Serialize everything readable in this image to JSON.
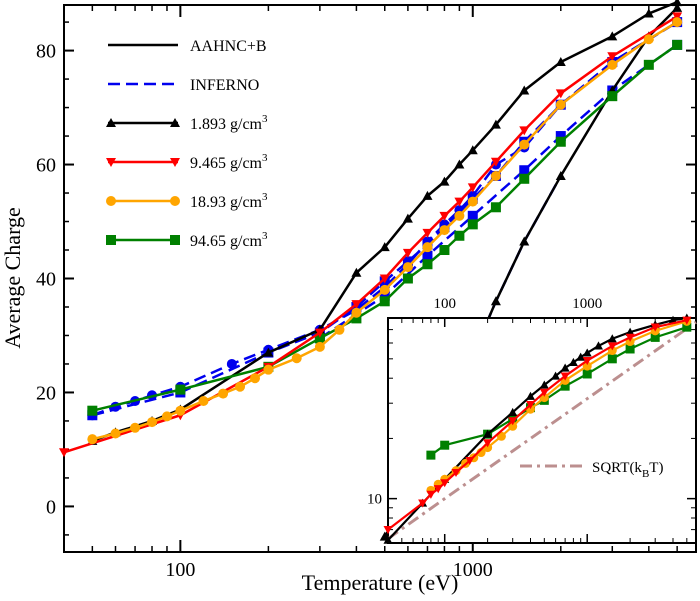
{
  "chart_data": [
    {
      "type": "line",
      "xlabel": "Temperature (eV)",
      "ylabel": "Average Charge",
      "xscale": "log",
      "yscale": "linear",
      "xlim": [
        40,
        5800
      ],
      "ylim": [
        -8,
        88
      ],
      "x_ticks": [
        100,
        1000
      ],
      "x_tick_labels": [
        "100",
        "1000"
      ],
      "y_ticks": [
        0,
        20,
        40,
        60,
        80
      ],
      "y_tick_labels": [
        "0",
        "20",
        "40",
        "60",
        "80"
      ],
      "grid": false,
      "legend": {
        "placement": "top-left",
        "entries": [
          {
            "label": "AAHNC+B",
            "color": "#000000",
            "style": "solid",
            "marker": "none"
          },
          {
            "label": "INFERNO",
            "color": "#0000ee",
            "style": "dashed",
            "marker": "none"
          },
          {
            "label_main": "1.893 g/cm",
            "label_sup": "3",
            "color": "#000000",
            "style": "solid",
            "marker": "triangle-up"
          },
          {
            "label_main": "9.465 g/cm",
            "label_sup": "3",
            "color": "#ff0000",
            "style": "solid",
            "marker": "triangle-down"
          },
          {
            "label_main": "18.93 g/cm",
            "label_sup": "3",
            "color": "#ffa500",
            "style": "solid",
            "marker": "circle"
          },
          {
            "label_main": "94.65 g/cm",
            "label_sup": "3",
            "color": "#008000",
            "style": "solid",
            "marker": "square"
          }
        ]
      },
      "series": [
        {
          "name": "AAHNC+B",
          "density": "1.893",
          "model": "AAHNC+B",
          "color": "#000000",
          "marker": "triangle-up",
          "x": [
            500,
            600,
            700,
            800,
            900,
            1000,
            1200,
            1500,
            2000,
            3000,
            4000,
            5000
          ],
          "y": [
            -5.3,
            1.5,
            9.5,
            14.5,
            20.5,
            26.5,
            36.0,
            46.5,
            58.0,
            73.0,
            82.5,
            87.5
          ]
        },
        {
          "name": "INFERNO",
          "density": "1.893",
          "model": "INFERNO",
          "color": "#0000ee",
          "style": "dashed",
          "x": [
            800,
            900,
            1000,
            1200,
            1500,
            2000
          ],
          "y": [
            14.5,
            20.5,
            26.5,
            36.0,
            46.5,
            58.0
          ]
        },
        {
          "name": "9.465 g/cm3",
          "density": "9.465",
          "model": "AAHNC+B",
          "color": "#ff0000",
          "marker": "triangle-down",
          "x": [
            40,
            100,
            200,
            300,
            400,
            500,
            600,
            700,
            800,
            900,
            1000,
            1200,
            1500,
            2000,
            3000,
            5000
          ],
          "y": [
            9.5,
            16.0,
            24.5,
            30.5,
            35.5,
            40.0,
            44.5,
            48.0,
            51.0,
            53.5,
            56.0,
            60.5,
            66.0,
            72.5,
            79.0,
            86.0
          ]
        },
        {
          "name": "18.93 g/cm3",
          "density": "18.93",
          "model": "AAHNC+B",
          "color": "#ffa500",
          "marker": "circle",
          "x": [
            50,
            60,
            70,
            80,
            90,
            100,
            120,
            140,
            160,
            180,
            200,
            250,
            300,
            350,
            400,
            500,
            600,
            700,
            800,
            900,
            1000,
            1200,
            1500,
            2000,
            3000,
            4000,
            5000
          ],
          "y": [
            11.8,
            12.8,
            13.8,
            14.8,
            15.8,
            16.8,
            18.5,
            19.8,
            21.0,
            22.5,
            24.0,
            26.0,
            28.0,
            31.0,
            34.0,
            38.0,
            42.0,
            45.5,
            48.5,
            51.0,
            53.5,
            58.0,
            63.5,
            70.5,
            77.5,
            82.0,
            85.0
          ]
        },
        {
          "name": "94.65 g/cm3",
          "density": "94.65",
          "model": "AAHNC+B",
          "color": "#008000",
          "marker": "square",
          "x": [
            50,
            100,
            200,
            300,
            400,
            500,
            600,
            700,
            800,
            900,
            1000,
            1200,
            1500,
            2000,
            3000,
            4000,
            5000
          ],
          "y": [
            16.8,
            20.5,
            24.5,
            29.5,
            33.0,
            36.0,
            40.0,
            42.5,
            45.0,
            47.5,
            49.5,
            52.5,
            57.5,
            64.0,
            72.0,
            77.5,
            81.0
          ]
        },
        {
          "name": "1.893 g/cm3 (INFERNO)",
          "density": "1.893",
          "model": "INFERNO",
          "color": "#0000ee",
          "style": "dashed",
          "marker": "circle",
          "x": [
            50,
            60,
            70,
            80,
            100,
            150,
            200,
            300,
            400,
            500,
            600,
            700,
            800,
            900,
            1000,
            1200,
            1500,
            2000,
            3000,
            5000
          ],
          "y": [
            16.0,
            17.5,
            18.5,
            19.5,
            21.0,
            25.0,
            27.5,
            31.0,
            34.5,
            38.5,
            42.5,
            46.5,
            49.5,
            52.0,
            54.5,
            60.0,
            63.0,
            70.5,
            78.0,
            85.0
          ]
        },
        {
          "name": "1.893 g/cm3 (AAHNC+B)",
          "density": "1.893",
          "model": "AAHNC+B",
          "color": "#000000",
          "marker": "triangle-up",
          "x": [
            50,
            60,
            80,
            100,
            200,
            300,
            400,
            500,
            600,
            700,
            800,
            900,
            1000,
            1200,
            1500,
            2000,
            3000,
            4000,
            5000
          ],
          "y": [
            11.5,
            13.0,
            15.0,
            17.0,
            27.0,
            31.0,
            41.0,
            45.5,
            50.5,
            54.5,
            57.0,
            60.0,
            62.5,
            67.0,
            73.0,
            78.0,
            82.5,
            86.5,
            88.5
          ]
        },
        {
          "name": "9.465 g/cm3 (INFERNO)",
          "density": "9.465",
          "model": "INFERNO",
          "color": "#0000ee",
          "style": "dashed",
          "marker": "square",
          "x": [
            50,
            100,
            200,
            300,
            400,
            500,
            600,
            700,
            800,
            1000,
            1200,
            1500,
            2000,
            3000,
            5000
          ],
          "y": [
            16.0,
            20.0,
            27.0,
            30.5,
            35.0,
            39.5,
            43.0,
            46.0,
            49.0,
            54.0,
            58.0,
            64.0,
            70.5,
            78.0,
            85.0
          ]
        },
        {
          "name": "94.65 g/cm3 (INFERNO)",
          "density": "94.65",
          "model": "INFERNO",
          "color": "#0000ee",
          "style": "dashed",
          "marker": "square",
          "x": [
            300,
            500,
            700,
            1000,
            1500,
            2000,
            3000,
            5000
          ],
          "y": [
            29.5,
            37.0,
            44.0,
            51.0,
            59.0,
            65.0,
            73.0,
            81.0
          ]
        }
      ]
    },
    {
      "type": "line",
      "inset": true,
      "placement": "bottom-right",
      "xscale": "log",
      "yscale": "log",
      "xlim": [
        40,
        5800
      ],
      "ylim": [
        6,
        80
      ],
      "x_ticks": [
        100,
        1000
      ],
      "x_tick_labels": [
        "100",
        "1000"
      ],
      "y_ticks": [
        10
      ],
      "y_tick_labels": [
        "10"
      ],
      "annotation": {
        "text_main": "SQRT(k",
        "text_sub": "B",
        "text_end": "T)",
        "color": "#bc8f8f",
        "style": "dash-dot"
      },
      "series": [
        {
          "name": "1.893 g/cm3",
          "color": "#000000",
          "marker": "triangle-up",
          "x": [
            40,
            70,
            100,
            200,
            300,
            400,
            500,
            600,
            700,
            800,
            900,
            1000,
            1200,
            1500,
            2000,
            3000,
            4000,
            5000
          ],
          "y": [
            6.2,
            9.5,
            12.5,
            21.0,
            27.0,
            32.5,
            37.0,
            41.0,
            45.0,
            48.0,
            51.0,
            53.5,
            58.0,
            63.0,
            68.0,
            74.0,
            78.0,
            80.0
          ]
        },
        {
          "name": "9.465 g/cm3",
          "color": "#ff0000",
          "marker": "triangle-down",
          "x": [
            40,
            70,
            80,
            90,
            100,
            120,
            150,
            200,
            300,
            400,
            500,
            700,
            1000,
            1500,
            2000,
            3000,
            5000
          ],
          "y": [
            7.0,
            9.5,
            10.5,
            11.2,
            12.0,
            13.5,
            15.5,
            19.0,
            24.5,
            29.5,
            34.0,
            41.0,
            49.0,
            58.0,
            64.0,
            72.0,
            78.0
          ]
        },
        {
          "name": "18.93 g/cm3",
          "color": "#ffa500",
          "marker": "circle",
          "x": [
            80,
            90,
            100,
            120,
            140,
            160,
            180,
            200,
            250,
            300,
            400,
            500,
            700,
            1000,
            1500,
            2000,
            3000,
            5000
          ],
          "y": [
            11.0,
            11.8,
            12.5,
            13.8,
            15.0,
            16.0,
            17.0,
            18.0,
            20.5,
            23.0,
            28.0,
            32.0,
            39.0,
            46.0,
            55.0,
            61.0,
            69.0,
            77.0
          ]
        },
        {
          "name": "94.65 g/cm3",
          "color": "#008000",
          "marker": "square",
          "x": [
            80,
            100,
            200,
            300,
            400,
            500,
            700,
            1000,
            1500,
            2000,
            3000,
            5000
          ],
          "y": [
            16.5,
            18.5,
            21.0,
            25.0,
            28.5,
            31.0,
            36.5,
            42.0,
            50.0,
            56.0,
            64.0,
            72.0
          ]
        },
        {
          "name": "SQRT(kBT)",
          "color": "#bc8f8f",
          "style": "dash-dot",
          "x": [
            40,
            100,
            300,
            1000,
            3000,
            5800
          ],
          "y": [
            6.3,
            10.0,
            17.3,
            31.6,
            54.8,
            76.2
          ]
        }
      ]
    }
  ]
}
